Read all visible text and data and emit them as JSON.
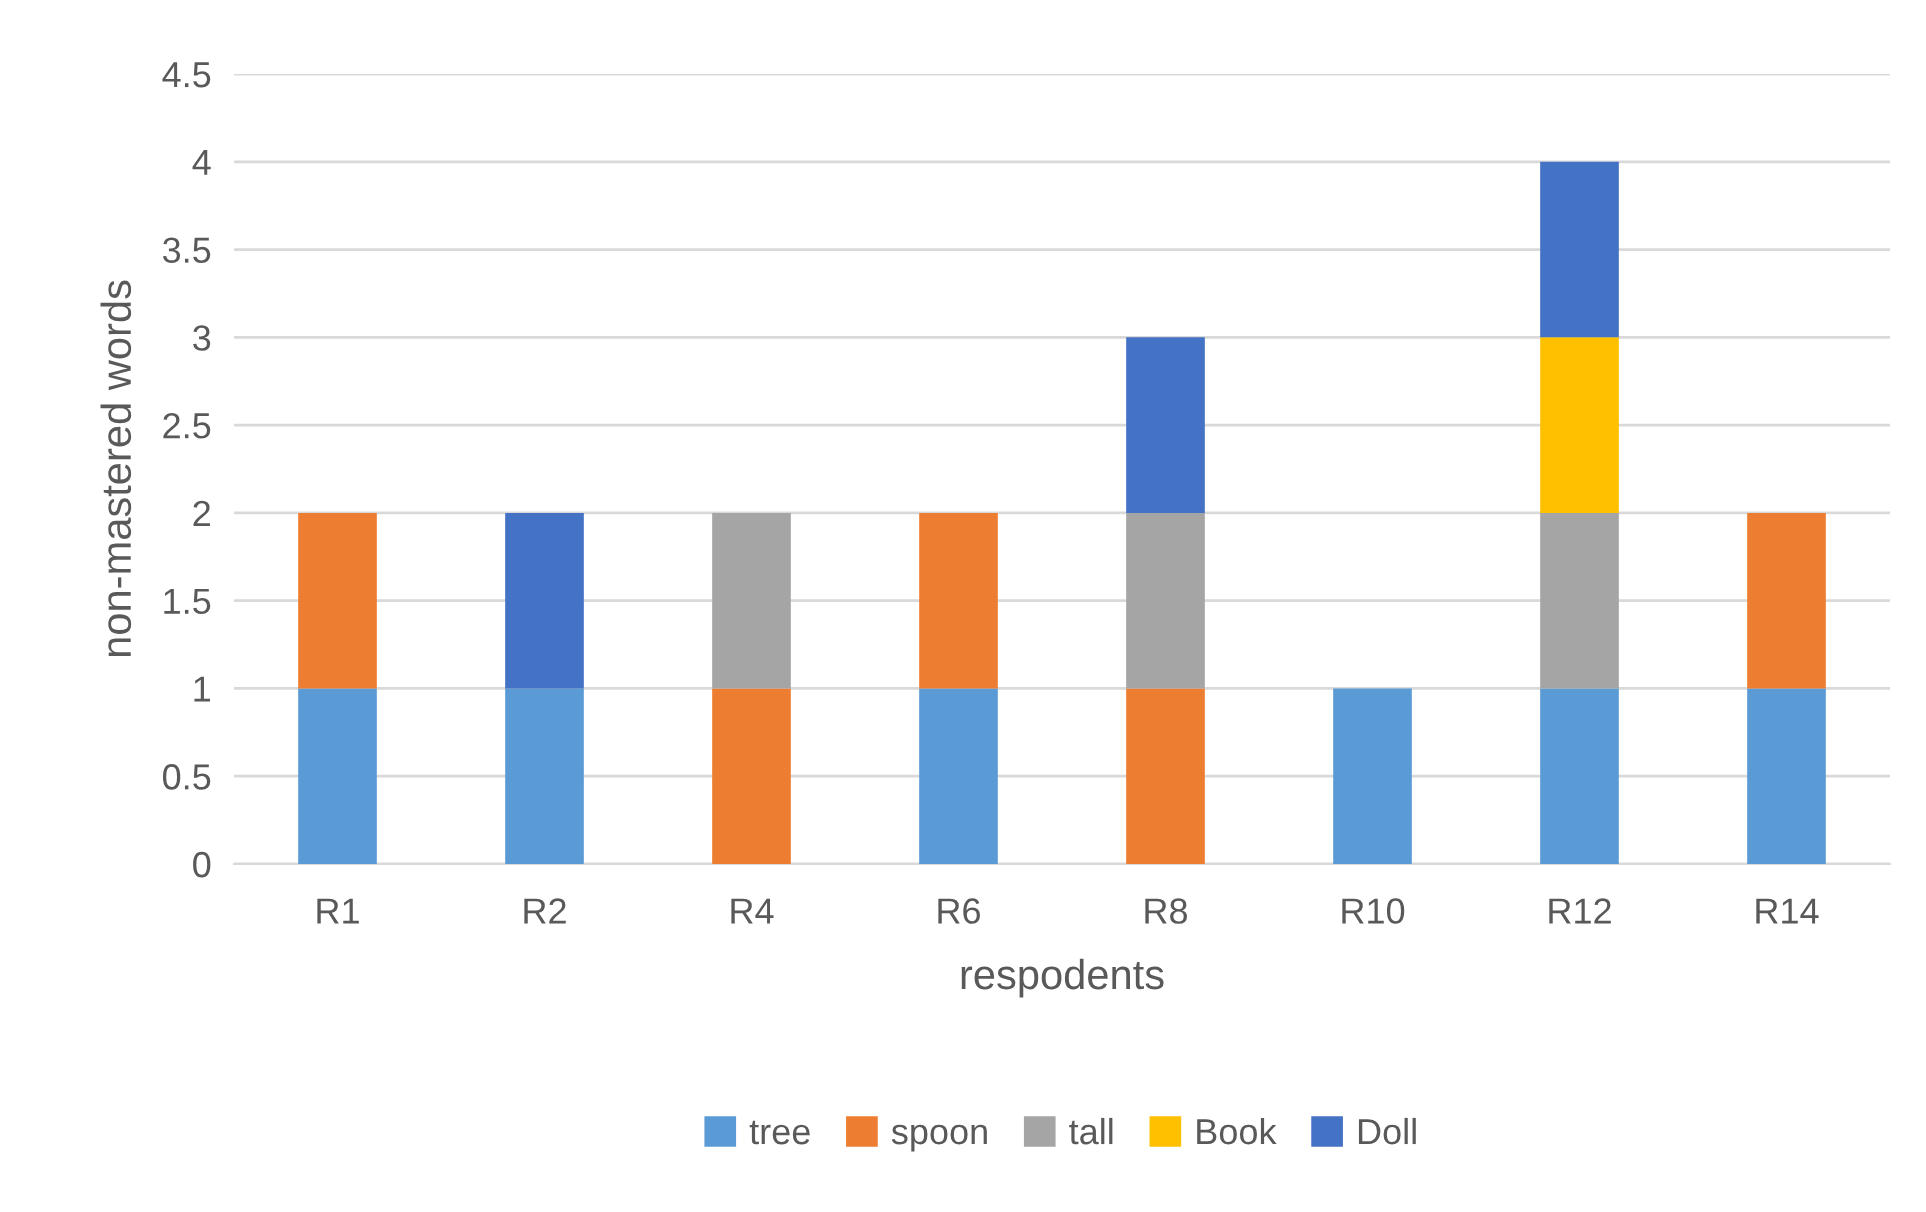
{
  "chart_data": {
    "type": "bar",
    "stacked": true,
    "xlabel": "respodents",
    "ylabel": "non-mastered words",
    "categories": [
      "R1",
      "R2",
      "R4",
      "R6",
      "R8",
      "R10",
      "R12",
      "R14"
    ],
    "series": [
      {
        "name": "tree",
        "color": "#5b9bd5",
        "values": [
          1,
          1,
          null,
          1,
          null,
          1,
          1,
          1
        ]
      },
      {
        "name": "spoon",
        "color": "#ed7d31",
        "values": [
          1,
          null,
          1,
          1,
          1,
          null,
          null,
          1
        ]
      },
      {
        "name": "tall",
        "color": "#a5a5a5",
        "values": [
          null,
          null,
          1,
          null,
          1,
          null,
          1,
          null
        ]
      },
      {
        "name": "Book",
        "color": "#ffc000",
        "values": [
          null,
          null,
          null,
          null,
          null,
          null,
          1,
          null
        ]
      },
      {
        "name": "Doll",
        "color": "#4472c4",
        "values": [
          null,
          1,
          null,
          null,
          1,
          null,
          1,
          null
        ]
      }
    ],
    "ylim": [
      0,
      4.5
    ],
    "yticks": [
      0,
      0.5,
      1,
      1.5,
      2,
      2.5,
      3,
      3.5,
      4,
      4.5
    ],
    "grid": "y",
    "legend": "bottom"
  }
}
